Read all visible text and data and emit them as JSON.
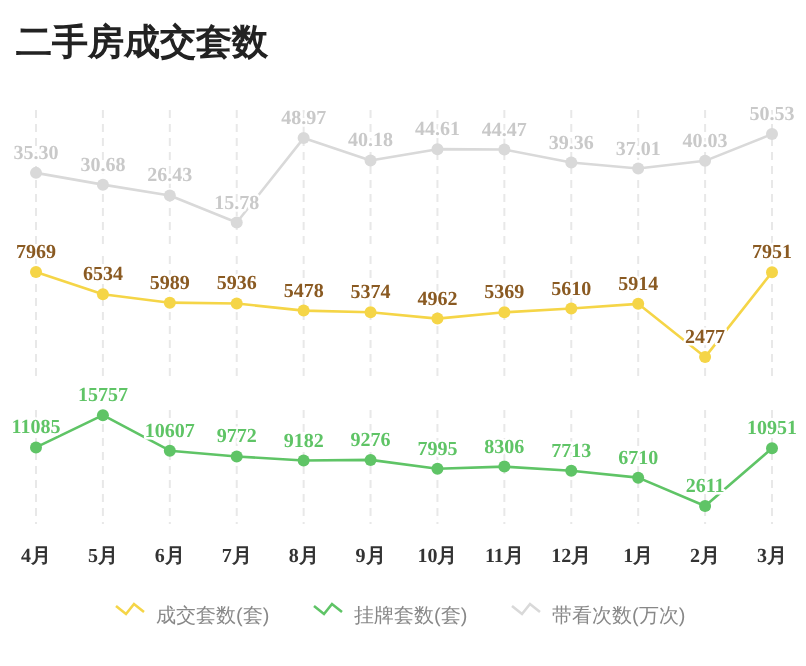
{
  "chart_data": [
    {
      "type": "line",
      "title": "二手房成交套数",
      "categories": [
        null,
        null,
        null,
        null,
        null,
        null,
        null,
        null,
        null,
        null,
        null,
        null
      ],
      "ylim": [
        5,
        60
      ],
      "tick_labels": false,
      "grid": "x",
      "marker": "circle",
      "line_style": "solid",
      "legend": "bottom",
      "series": [
        {
          "name": "带看次数(万次)",
          "color": "#d9d9d9",
          "values": [
            35.3,
            30.68,
            26.43,
            15.78,
            48.97,
            40.18,
            44.61,
            44.47,
            39.36,
            37.01,
            40.03,
            50.53
          ],
          "value_labels": [
            "35.30",
            "30.68",
            "26.43",
            "15.78",
            "48.97",
            "40.18",
            "44.61",
            "44.47",
            "39.36",
            "37.01",
            "40.03",
            "50.53"
          ]
        }
      ]
    },
    {
      "type": "line",
      "categories": [
        null,
        null,
        null,
        null,
        null,
        null,
        null,
        null,
        null,
        null,
        null,
        null
      ],
      "ylim": [
        1000,
        9000
      ],
      "tick_labels": false,
      "grid": "x",
      "marker": "circle",
      "line_style": "solid",
      "legend": "bottom",
      "data_labels": true,
      "series": [
        {
          "name": "成交套数(套)",
          "color": "#f5d547",
          "values": [
            7969,
            6534,
            5989,
            5936,
            5478,
            5374,
            4962,
            5369,
            5610,
            5914,
            2477,
            7951
          ]
        }
      ]
    },
    {
      "type": "line",
      "categories": [
        "4月",
        "5月",
        "6月",
        "7月",
        "8月",
        "9月",
        "10月",
        "11月",
        "12月",
        "1月",
        "2月",
        "3月"
      ],
      "ylim": [
        0,
        16500
      ],
      "tick_labels": "x",
      "grid": "x",
      "marker": "circle",
      "line_style": "solid",
      "legend": "bottom",
      "data_labels": true,
      "series": [
        {
          "name": "挂牌套数(套)",
          "color": "#5fc466",
          "values": [
            11085,
            15757,
            10607,
            9772,
            9182,
            9276,
            7995,
            8306,
            7713,
            6710,
            2611,
            10951
          ]
        }
      ]
    }
  ]
}
